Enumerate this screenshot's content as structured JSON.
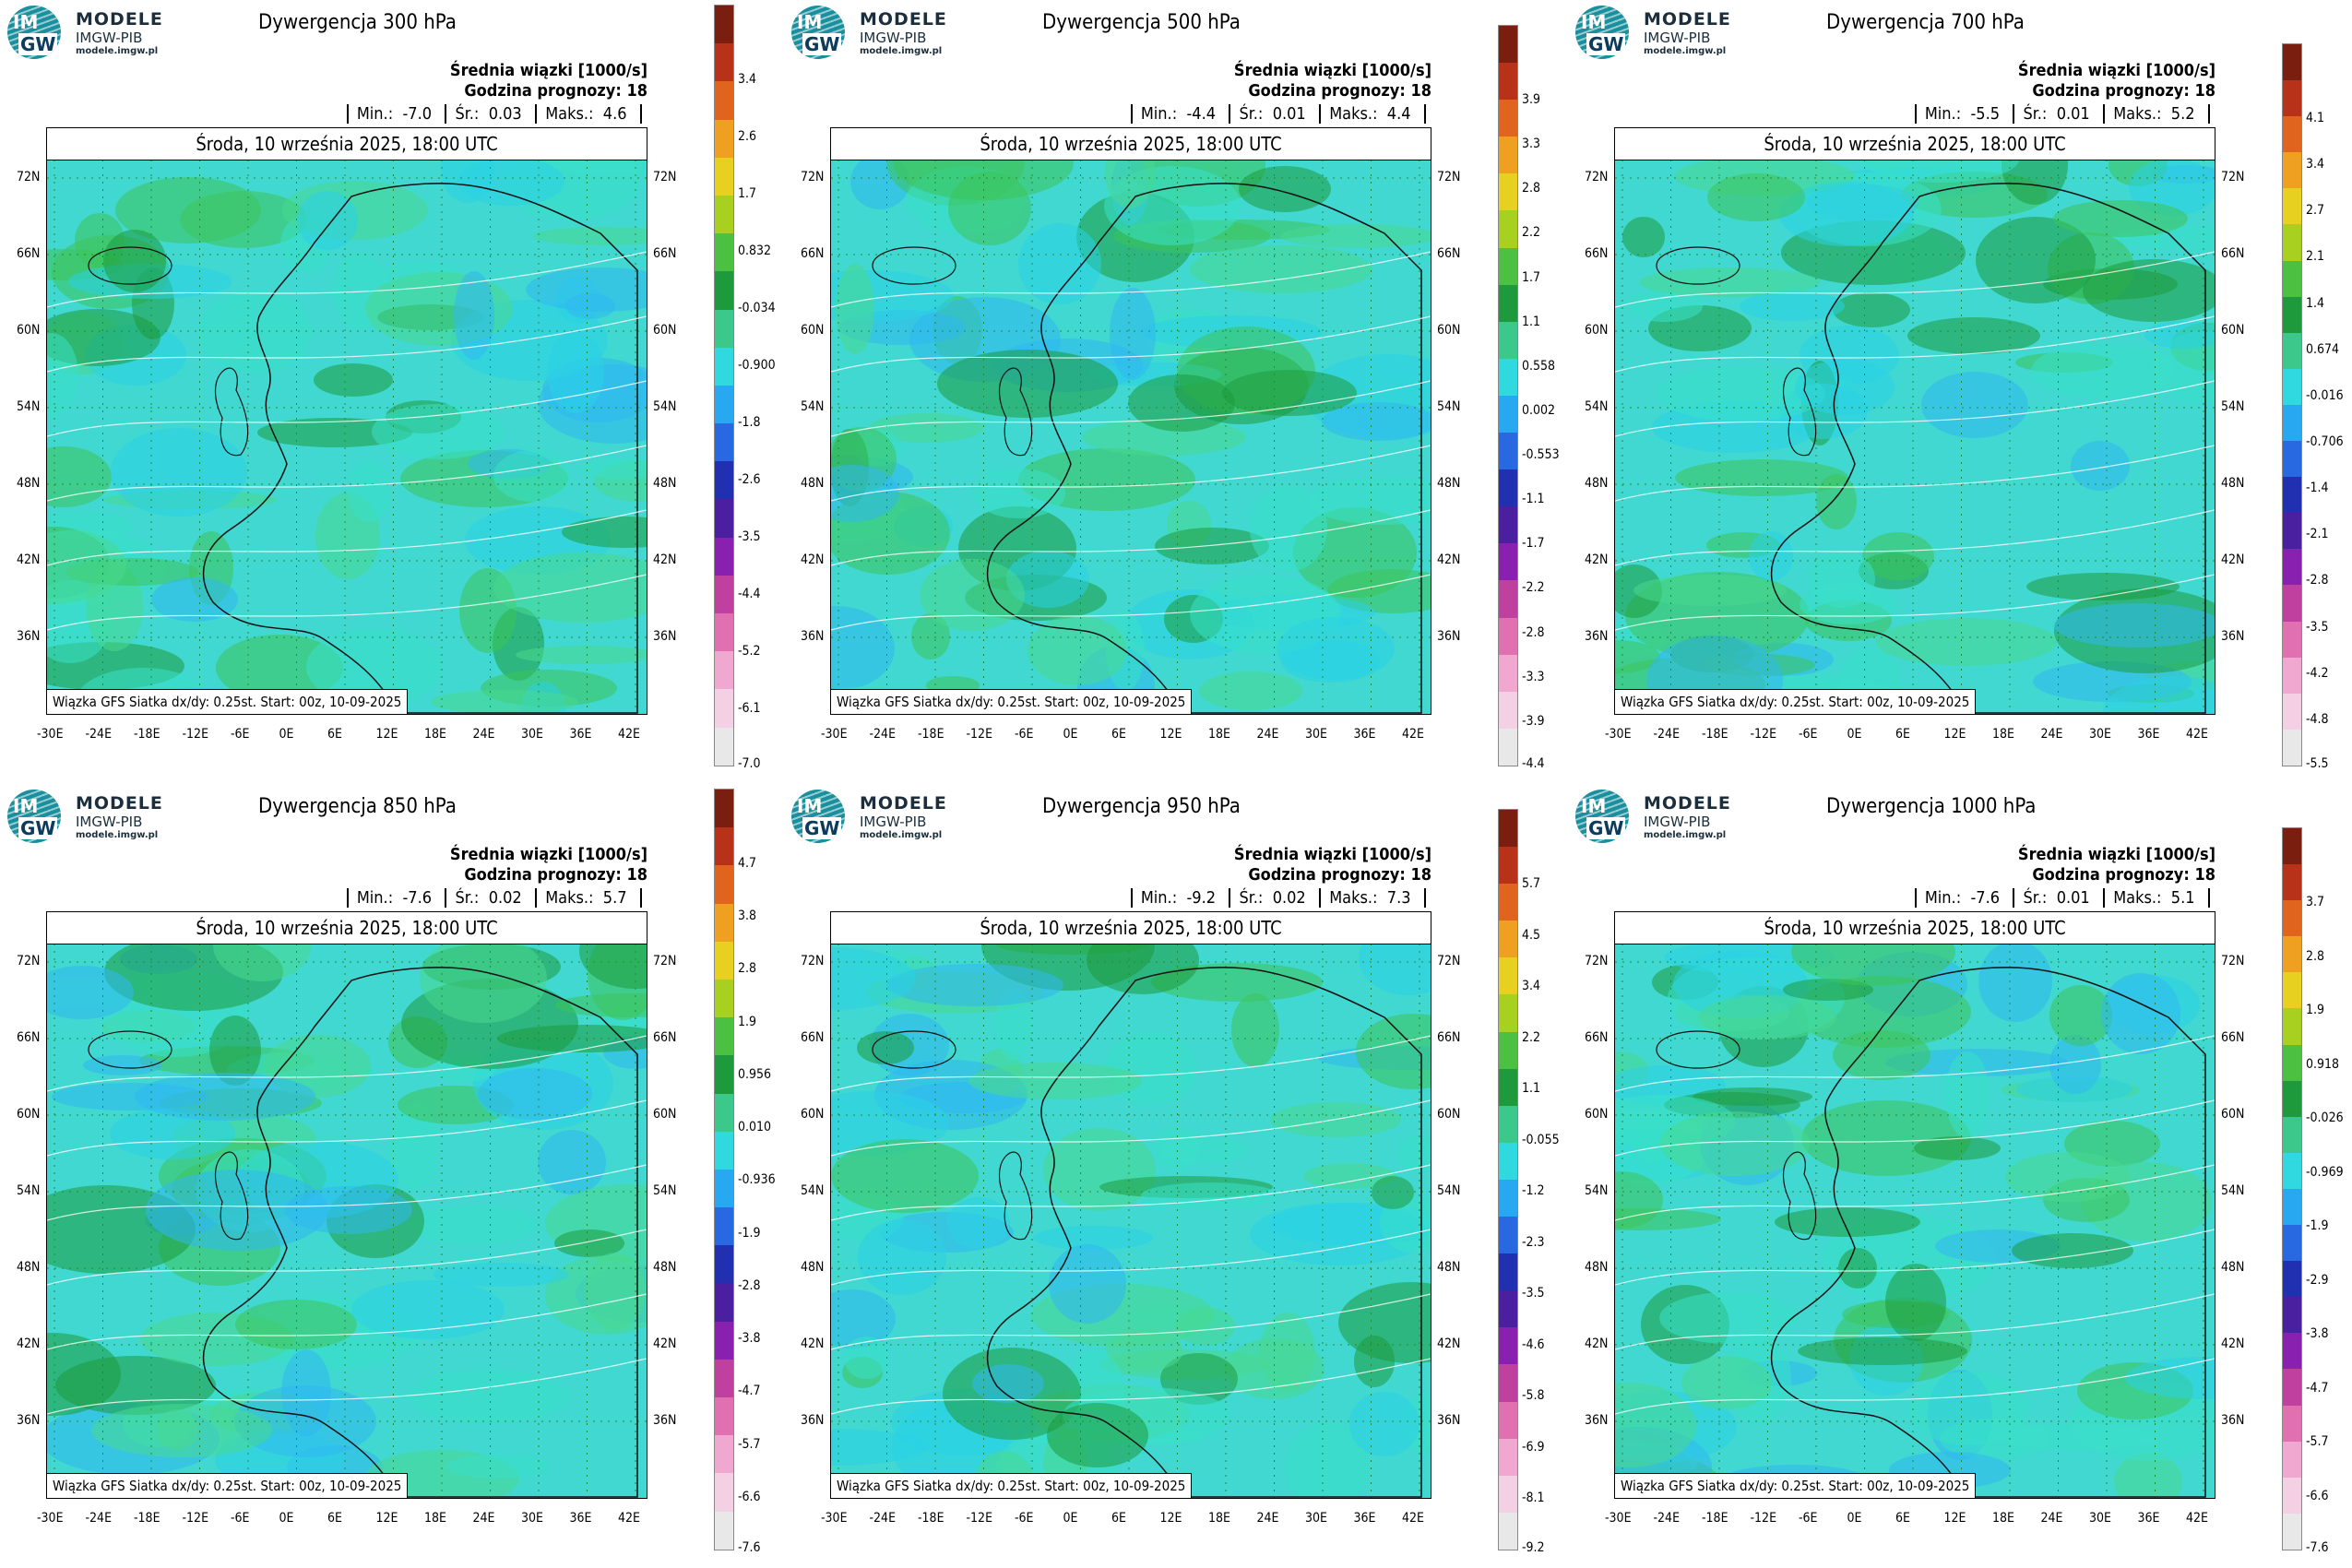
{
  "logo": {
    "line1": "MODELE",
    "line2": "IMGW-PIB",
    "line3": "modele.imgw.pl",
    "im": "IM",
    "gw": "GW"
  },
  "common": {
    "subtitle1": "Średnia wiązki [1000/s]",
    "subtitle2": "Godzina prognozy: 18",
    "min_label": "Min.:",
    "avg_label": "Śr.:",
    "max_label": "Maks.:",
    "date": "Środa, 10 września 2025, 18:00 UTC",
    "footer": "Wiązka GFS Siatka dx/dy: 0.25st. Start: 00z, 10-09-2025",
    "lat_labels": [
      "72N",
      "66N",
      "60N",
      "54N",
      "48N",
      "42N",
      "36N"
    ],
    "lon_labels": [
      "-30E",
      "-24E",
      "-18E",
      "-12E",
      "-6E",
      "0E",
      "6E",
      "12E",
      "18E",
      "24E",
      "30E",
      "36E",
      "42E"
    ]
  },
  "panels": [
    {
      "title": "Dywergencja 300 hPa",
      "min": "-7.0",
      "avg": "0.03",
      "max": "4.6",
      "colorbar": [
        "3.4",
        "2.6",
        "1.7",
        "0.832",
        "-0.034",
        "-0.900",
        "-1.8",
        "-2.6",
        "-3.5",
        "-4.4",
        "-5.2",
        "-6.1",
        "-7.0"
      ]
    },
    {
      "title": "Dywergencja 500 hPa",
      "min": "-4.4",
      "avg": "0.01",
      "max": "4.4",
      "colorbar": [
        "3.9",
        "3.3",
        "2.8",
        "2.2",
        "1.7",
        "1.1",
        "0.558",
        "0.002",
        "-0.553",
        "-1.1",
        "-1.7",
        "-2.2",
        "-2.8",
        "-3.3",
        "-3.9",
        "-4.4"
      ]
    },
    {
      "title": "Dywergencja 700 hPa",
      "min": "-5.5",
      "avg": "0.01",
      "max": "5.2",
      "colorbar": [
        "4.1",
        "3.4",
        "2.7",
        "2.1",
        "1.4",
        "0.674",
        "-0.016",
        "-0.706",
        "-1.4",
        "-2.1",
        "-2.8",
        "-3.5",
        "-4.2",
        "-4.8",
        "-5.5"
      ]
    },
    {
      "title": "Dywergencja 850 hPa",
      "min": "-7.6",
      "avg": "0.02",
      "max": "5.7",
      "colorbar": [
        "4.7",
        "3.8",
        "2.8",
        "1.9",
        "0.956",
        "0.010",
        "-0.936",
        "-1.9",
        "-2.8",
        "-3.8",
        "-4.7",
        "-5.7",
        "-6.6",
        "-7.6"
      ]
    },
    {
      "title": "Dywergencja 950 hPa",
      "min": "-9.2",
      "avg": "0.02",
      "max": "7.3",
      "colorbar": [
        "5.7",
        "4.5",
        "3.4",
        "2.2",
        "1.1",
        "-0.055",
        "-1.2",
        "-2.3",
        "-3.5",
        "-4.6",
        "-5.8",
        "-6.9",
        "-8.1",
        "-9.2"
      ]
    },
    {
      "title": "Dywergencja 1000 hPa",
      "min": "-7.6",
      "avg": "0.01",
      "max": "5.1",
      "colorbar": [
        "3.7",
        "2.8",
        "1.9",
        "0.918",
        "-0.026",
        "-0.969",
        "-1.9",
        "-2.9",
        "-3.8",
        "-4.7",
        "-5.7",
        "-6.6",
        "-7.6"
      ]
    }
  ],
  "colors": {
    "green_dark": "#1e8c3a",
    "green": "#3cc45a",
    "cyan": "#2ad2e6",
    "blue": "#2a6edc",
    "map_bg": "#40d8d0"
  }
}
